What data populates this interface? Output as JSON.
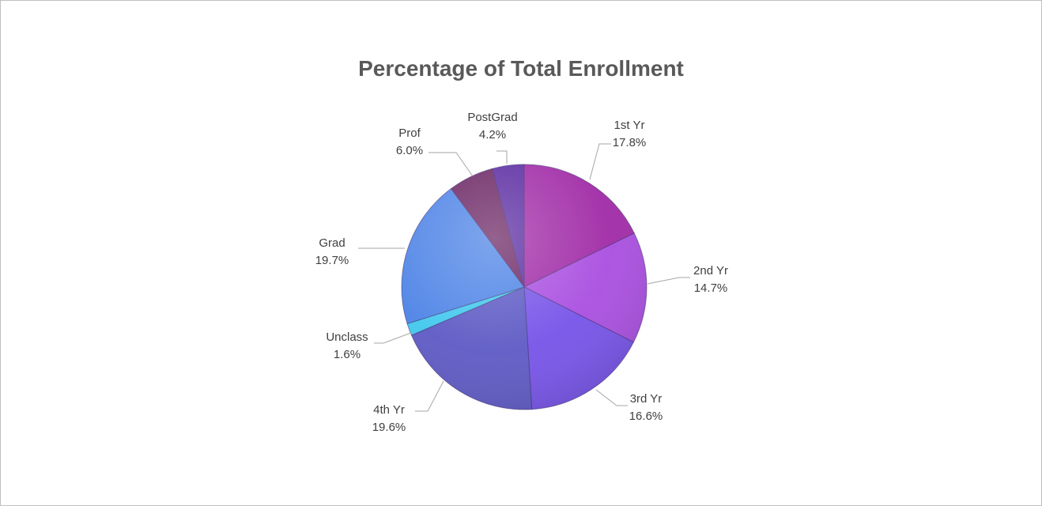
{
  "chart_data": {
    "type": "pie",
    "title": "Percentage of Total Enrollment",
    "categories": [
      "1st Yr",
      "2nd Yr",
      "3rd Yr",
      "4th Yr",
      "Unclass",
      "Grad",
      "Prof",
      "PostGrad"
    ],
    "values": [
      17.8,
      14.7,
      16.6,
      19.6,
      1.6,
      19.7,
      6.0,
      4.2
    ],
    "labels": [
      "17.8%",
      "14.7%",
      "16.6%",
      "19.6%",
      "1.6%",
      "19.7%",
      "6.0%",
      "4.2%"
    ],
    "colors": [
      "#a02aa6",
      "#a94ee0",
      "#7653e8",
      "#5d59c4",
      "#41c8ee",
      "#4d83e6",
      "#6a2563",
      "#5a2ba1"
    ],
    "legend": "none",
    "data_labels": "outside-with-leader-lines"
  }
}
